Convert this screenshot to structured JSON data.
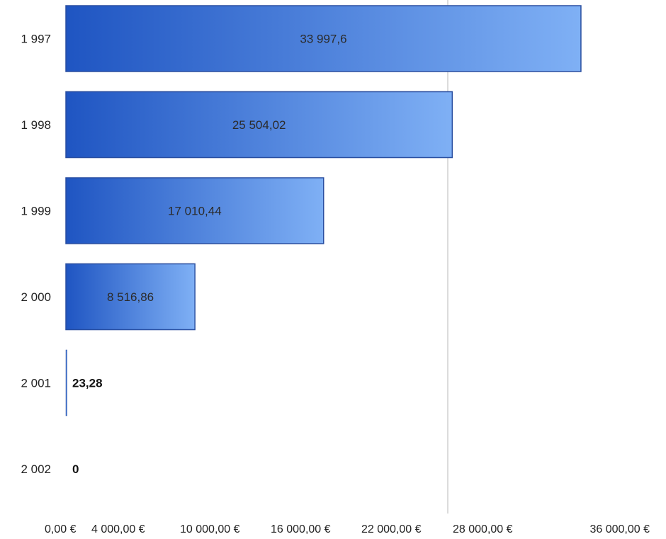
{
  "chart_data": {
    "type": "bar",
    "orientation": "horizontal",
    "categories": [
      "1 997",
      "1 998",
      "1 999",
      "2 000",
      "2 001",
      "2 002"
    ],
    "values": [
      33997.6,
      25504.02,
      17010.44,
      8516.86,
      23.28,
      0
    ],
    "value_labels": [
      "33 997,6",
      "25 504,02",
      "17 010,44",
      "8 516,86",
      "23,28",
      "0"
    ],
    "x_ticks": [
      {
        "value": 0,
        "label": "0,00 €"
      },
      {
        "value": 4000,
        "label": "4 000,00 €"
      },
      {
        "value": 10000,
        "label": "10 000,00 €"
      },
      {
        "value": 16000,
        "label": "16 000,00 €"
      },
      {
        "value": 22000,
        "label": "22 000,00 €"
      },
      {
        "value": 28000,
        "label": "28 000,00 €"
      },
      {
        "value": 36000,
        "label": "36 000,00 €"
      }
    ],
    "xlim": [
      0,
      36000
    ],
    "grid": false,
    "title": "",
    "xlabel": "",
    "ylabel": "",
    "colors": {
      "bar_dark": "#1f55c2",
      "bar_light": "#7fb0f5",
      "bar_border": "#2a4fa0",
      "axis_line": "#d0d0d0"
    }
  }
}
